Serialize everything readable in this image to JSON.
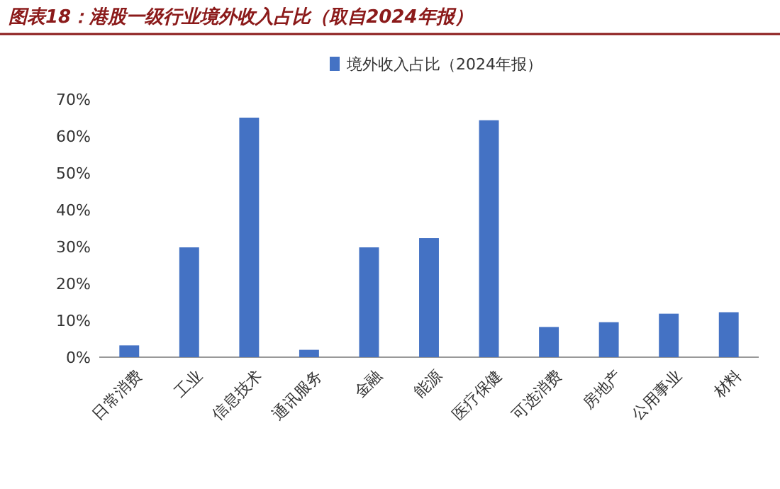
{
  "chart_data": {
    "type": "bar",
    "title": "图表18：港股一级行业境外收入占比（取自2024年报）",
    "categories": [
      "日常消费",
      "工业",
      "信息技术",
      "通讯服务",
      "金融",
      "能源",
      "医疗保健",
      "可选消费",
      "房地产",
      "公用事业",
      "材料"
    ],
    "series": [
      {
        "name": "境外收入占比（2024年报）",
        "color": "#4472c4",
        "values": [
          3.2,
          29.8,
          65,
          2,
          29.8,
          32.3,
          64.3,
          8.2,
          9.5,
          11.8,
          12.2
        ]
      }
    ],
    "ylim": [
      0,
      70
    ],
    "yticks": [
      {
        "value": 0,
        "label": "0%"
      },
      {
        "value": 10,
        "label": "10%"
      },
      {
        "value": 20,
        "label": "20%"
      },
      {
        "value": 30,
        "label": "30%"
      },
      {
        "value": 40,
        "label": "40%"
      },
      {
        "value": 50,
        "label": "50%"
      },
      {
        "value": 60,
        "label": "60%"
      },
      {
        "value": 70,
        "label": "70%"
      }
    ],
    "legend": "top",
    "grid": false
  }
}
